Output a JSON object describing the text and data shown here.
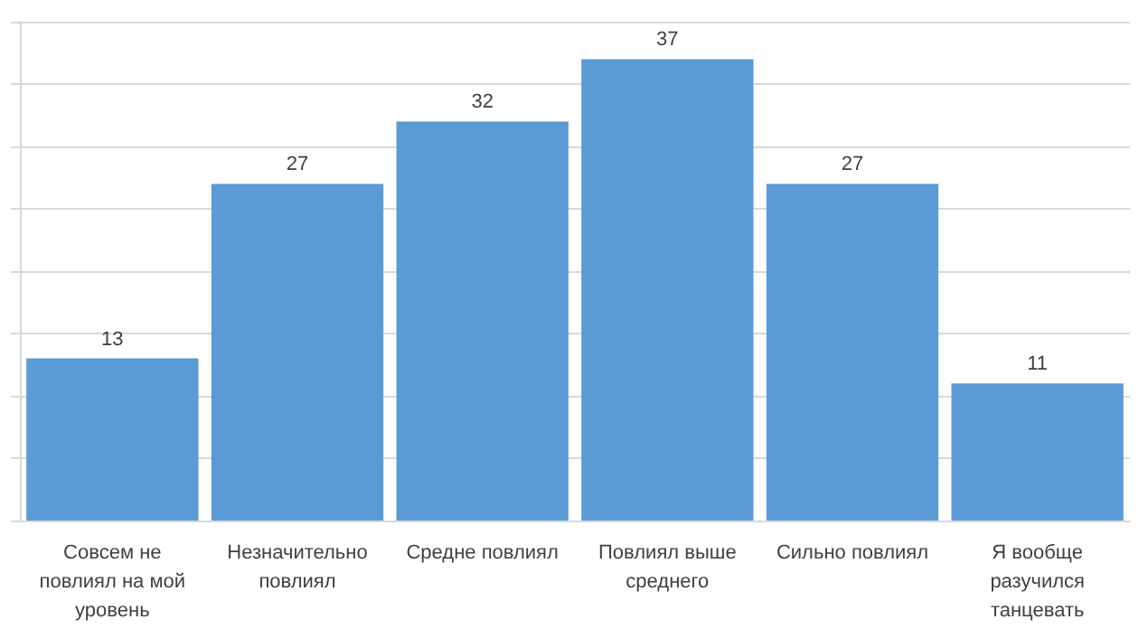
{
  "chart_data": {
    "type": "bar",
    "categories": [
      "Совсем не повлиял на мой уровень",
      "Незначительно повлиял",
      "Средне повлиял",
      "Повлиял выше среднего",
      "Сильно повлиял",
      "Я вообще разучился танцевать"
    ],
    "values": [
      13,
      27,
      32,
      37,
      27,
      11
    ],
    "color": "#5b9bd5",
    "ylim": [
      0,
      40
    ],
    "yticks": [
      {
        "value": 0,
        "label": null
      },
      {
        "value": 5,
        "label": null
      },
      {
        "value": 10,
        "label": null
      },
      {
        "value": 15,
        "label": null
      },
      {
        "value": 20,
        "label": null
      },
      {
        "value": 25,
        "label": null
      },
      {
        "value": 30,
        "label": null
      },
      {
        "value": 35,
        "label": null
      },
      {
        "value": 40,
        "label": null
      }
    ],
    "grid": true,
    "data_labels": true
  }
}
